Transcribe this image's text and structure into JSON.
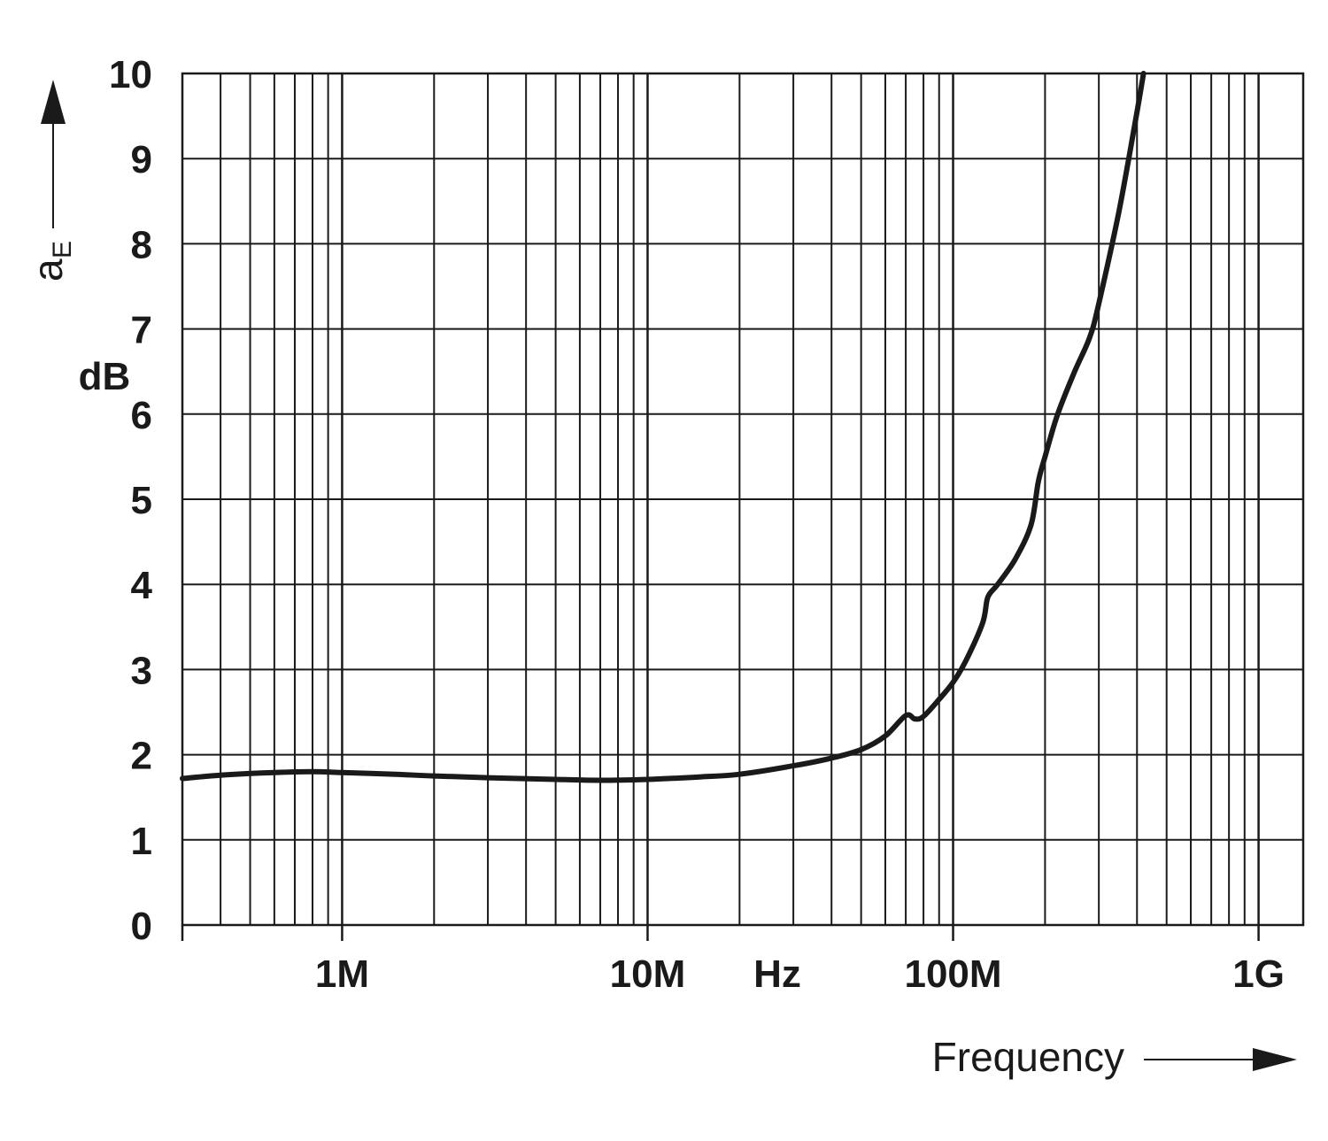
{
  "chart_data": {
    "type": "line",
    "xscale": "log",
    "xlim": [
      300000,
      1400000000
    ],
    "ylim": [
      0,
      10
    ],
    "xlabel": "Frequency",
    "xunit": "Hz",
    "ylabel_main": "a",
    "ylabel_sub": "E",
    "yunit": "dB",
    "grid": true,
    "legend": "none",
    "yticks": [
      "0",
      "1",
      "2",
      "3",
      "4",
      "5",
      "6",
      "7",
      "8",
      "9",
      "10"
    ],
    "xticks": [
      {
        "value": 1000000,
        "label": "1M"
      },
      {
        "value": 10000000,
        "label": "10M"
      },
      {
        "value": 100000000,
        "label": "100M"
      },
      {
        "value": 1000000000,
        "label": "1G"
      }
    ],
    "line_color": "#1a1a1a",
    "series": [
      {
        "x": [
          300000,
          400000,
          600000,
          800000,
          1000000,
          1500000,
          2000000,
          3000000,
          5000000,
          7000000,
          10000000,
          15000000,
          20000000,
          30000000,
          40000000,
          50000000,
          60000000,
          70000000,
          75000000,
          80000000,
          90000000,
          100000000,
          110000000,
          125000000,
          130000000,
          140000000,
          160000000,
          180000000,
          190000000,
          200000000,
          220000000,
          250000000,
          280000000,
          300000000,
          350000000,
          400000000,
          420000000
        ],
        "y": [
          1.72,
          1.76,
          1.79,
          1.8,
          1.79,
          1.77,
          1.75,
          1.73,
          1.71,
          1.7,
          1.71,
          1.74,
          1.77,
          1.87,
          1.96,
          2.06,
          2.22,
          2.46,
          2.42,
          2.45,
          2.65,
          2.85,
          3.1,
          3.55,
          3.85,
          4.0,
          4.3,
          4.7,
          5.2,
          5.5,
          6.0,
          6.5,
          6.9,
          7.3,
          8.4,
          9.55,
          10.0
        ]
      }
    ]
  }
}
